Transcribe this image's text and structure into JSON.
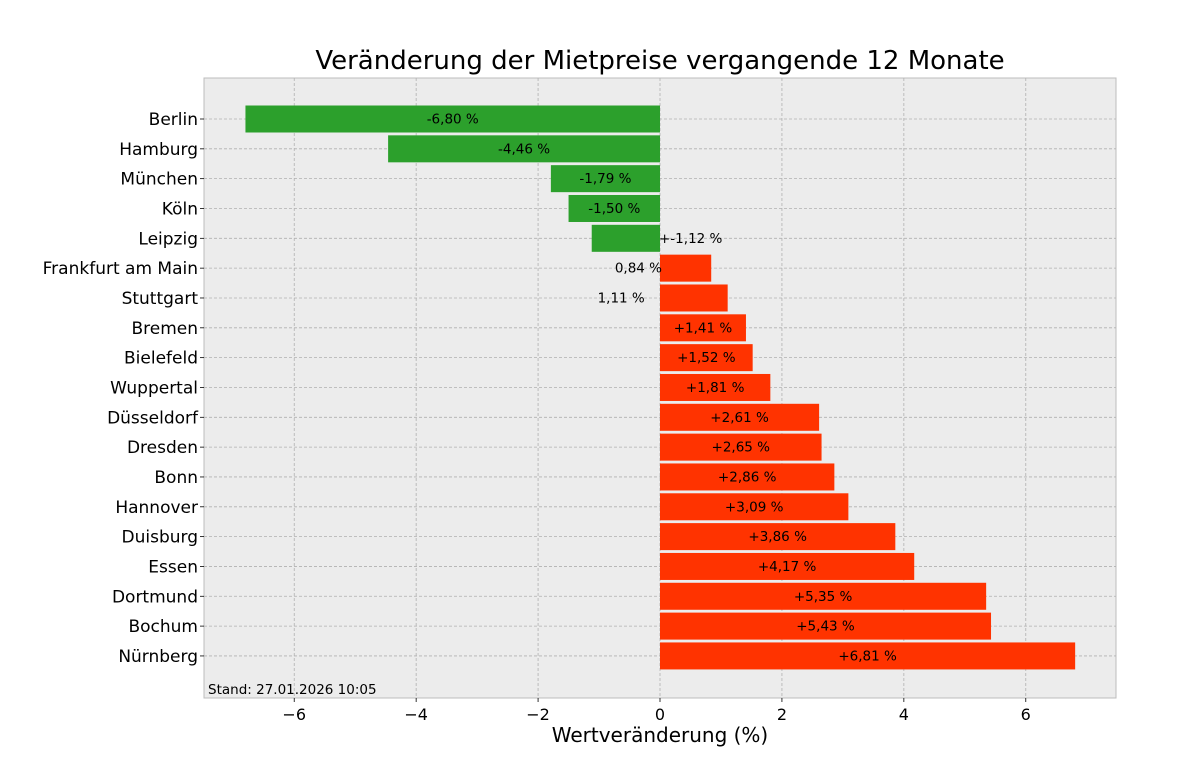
{
  "chart_data": {
    "type": "bar",
    "orientation": "horizontal",
    "title": "Veränderung der Mietpreise vergangende 12 Monate",
    "xlabel": "Wertveränderung (%)",
    "ylabel": "",
    "xlim": [
      -7.48,
      7.48
    ],
    "xticks": [
      -6,
      -4,
      -2,
      0,
      2,
      4,
      6
    ],
    "xtick_labels": [
      "−6",
      "−4",
      "−2",
      "0",
      "2",
      "4",
      "6"
    ],
    "grid": true,
    "annotation": "Stand: 27.01.2026 10:05",
    "colors": {
      "negative": "#2ca02c",
      "positive": "#ff3300",
      "background": "#ececec"
    },
    "categories": [
      "Berlin",
      "Hamburg",
      "München",
      "Köln",
      "Leipzig",
      "Frankfurt am Main",
      "Stuttgart",
      "Bremen",
      "Bielefeld",
      "Wuppertal",
      "Düsseldorf",
      "Dresden",
      "Bonn",
      "Hannover",
      "Duisburg",
      "Essen",
      "Dortmund",
      "Bochum",
      "Nürnberg"
    ],
    "values": [
      -6.8,
      -4.46,
      -1.79,
      -1.5,
      -1.12,
      0.84,
      1.11,
      1.41,
      1.52,
      1.81,
      2.61,
      2.65,
      2.86,
      3.09,
      3.86,
      4.17,
      5.35,
      5.43,
      6.81
    ],
    "data_labels": [
      "-6,80 %",
      "-4,46 %",
      "-1,79 %",
      "-1,50 %",
      "+-1,12 %",
      "0,84 %",
      "1,11 %",
      "+1,41 %",
      "+1,52 %",
      "+1,81 %",
      "+2,61 %",
      "+2,65 %",
      "+2,86 %",
      "+3,09 %",
      "+3,86 %",
      "+4,17 %",
      "+5,35 %",
      "+5,43 %",
      "+6,81 %"
    ]
  }
}
